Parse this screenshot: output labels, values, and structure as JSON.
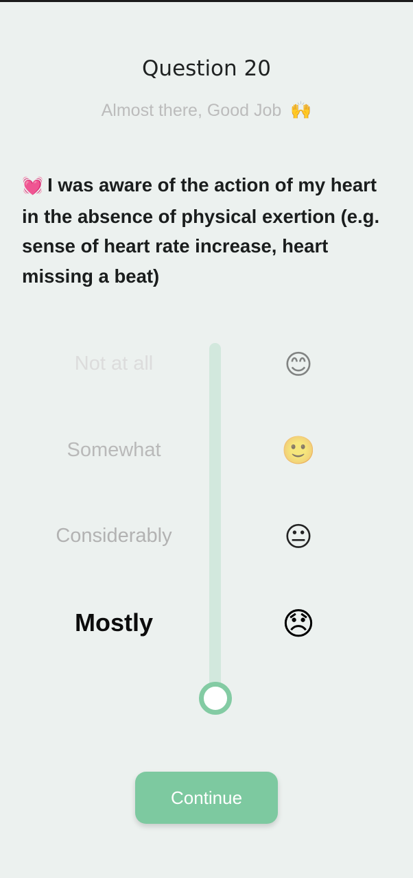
{
  "header": {
    "title": "Question 20",
    "subtitle": "Almost there, Good Job",
    "subtitle_emoji": "🙌"
  },
  "question": {
    "emoji": "💓",
    "text": "I was aware of the action of my heart in the absence of physical exertion (e.g. sense of heart rate increase, heart missing a beat)"
  },
  "scale": {
    "options": [
      {
        "label": "Not at all",
        "emoji": "😊"
      },
      {
        "label": "Somewhat",
        "emoji": "🙂"
      },
      {
        "label": "Considerably",
        "emoji": "😐"
      },
      {
        "label": "Mostly",
        "emoji": "😞"
      }
    ],
    "selected_label": "Mostly"
  },
  "actions": {
    "continue_label": "Continue"
  },
  "colors": {
    "accent": "#7dc9a0",
    "track": "#d2e8dd",
    "background": "#ecf1ef"
  }
}
